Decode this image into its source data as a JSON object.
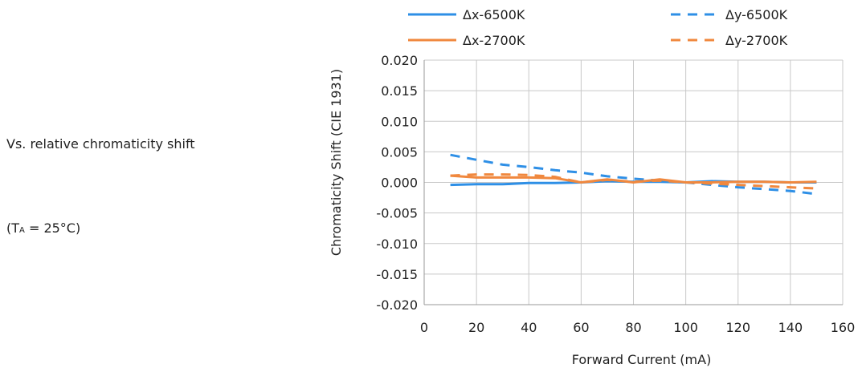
{
  "side_text": {
    "caption": "Vs. relative chromaticity shift",
    "condition_prefix": "(T",
    "condition_sub": "A",
    "condition_suffix": " = 25°C)"
  },
  "chart_data": {
    "type": "line",
    "xlabel": "Forward Current (mA)",
    "ylabel": "Chromaticity Shift (CIE 1931)",
    "xlim": [
      0,
      160
    ],
    "ylim": [
      -0.02,
      0.02
    ],
    "xticks": [
      "0",
      "20",
      "40",
      "60",
      "80",
      "100",
      "120",
      "140",
      "160"
    ],
    "yticks": [
      "0.020",
      "0.015",
      "0.010",
      "0.005",
      "0.000",
      "-0.005",
      "-0.010",
      "-0.015",
      "-0.020"
    ],
    "grid": true,
    "legend_position": "top",
    "series": [
      {
        "name": "Δx-6500K",
        "color": "#2E8FE6",
        "dash": "solid",
        "x": [
          10,
          20,
          30,
          40,
          50,
          60,
          70,
          80,
          90,
          100,
          110,
          120,
          130,
          140,
          150
        ],
        "y": [
          -0.0004,
          -0.0003,
          -0.0003,
          -0.0001,
          -0.0001,
          0.0,
          0.0002,
          0.0001,
          0.0001,
          0.0,
          0.0002,
          0.0001,
          0.0001,
          0.0,
          0.0
        ]
      },
      {
        "name": "Δy-6500K",
        "color": "#2E8FE6",
        "dash": "dashed",
        "x": [
          10,
          20,
          30,
          40,
          50,
          60,
          70,
          80,
          90,
          100,
          110,
          120,
          130,
          140,
          150
        ],
        "y": [
          0.0045,
          0.0037,
          0.0029,
          0.0025,
          0.002,
          0.0016,
          0.001,
          0.0006,
          0.0003,
          0.0,
          -0.0004,
          -0.0008,
          -0.0011,
          -0.0014,
          -0.0019
        ]
      },
      {
        "name": "Δx-2700K",
        "color": "#F0883E",
        "dash": "solid",
        "x": [
          10,
          20,
          30,
          40,
          50,
          60,
          70,
          80,
          90,
          100,
          110,
          120,
          130,
          140,
          150
        ],
        "y": [
          0.0011,
          0.0008,
          0.0008,
          0.0008,
          0.0007,
          0.0,
          0.0005,
          0.0,
          0.0005,
          0.0,
          0.0,
          0.0001,
          0.0001,
          0.0,
          0.0001
        ]
      },
      {
        "name": "Δy-2700K",
        "color": "#F0883E",
        "dash": "dashed",
        "x": [
          10,
          20,
          30,
          40,
          50,
          60,
          70,
          80,
          90,
          100,
          110,
          120,
          130,
          140,
          150
        ],
        "y": [
          0.0011,
          0.0013,
          0.0013,
          0.0012,
          0.0009,
          0.0,
          0.0004,
          0.0001,
          0.0003,
          0.0,
          -0.0002,
          -0.0004,
          -0.0006,
          -0.0008,
          -0.001
        ]
      }
    ]
  }
}
